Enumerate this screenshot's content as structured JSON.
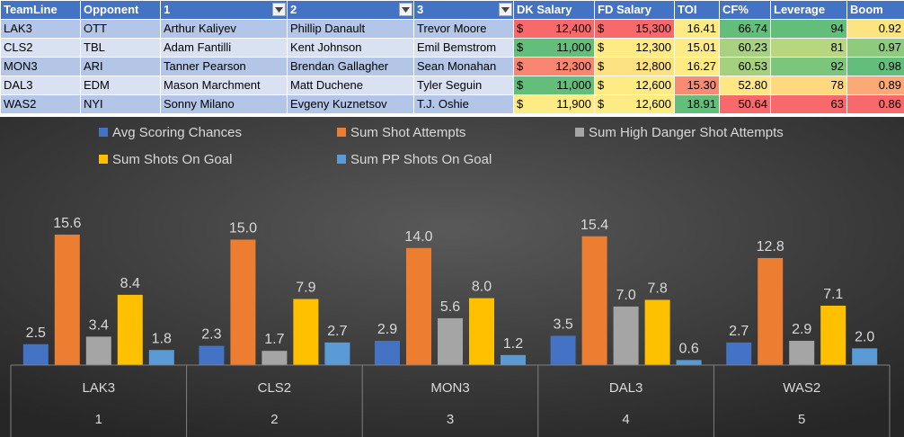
{
  "table": {
    "columns": [
      "TeamLine",
      "Opponent",
      "1",
      "2",
      "3",
      "DK Salary",
      "FD Salary",
      "TOI",
      "CF%",
      "Leverage",
      "Boom"
    ],
    "filter_columns": [
      2,
      3,
      4
    ],
    "rows": [
      {
        "teamline": "LAK3",
        "opponent": "OTT",
        "p1": "Arthur Kaliyev",
        "p2": "Phillip Danault",
        "p3": "Trevor Moore",
        "dk": "12,400",
        "fd": "15,300",
        "toi": "16.41",
        "cf": "66.74",
        "leverage": "94",
        "boom": "0.92"
      },
      {
        "teamline": "CLS2",
        "opponent": "TBL",
        "p1": "Adam Fantilli",
        "p2": "Kent Johnson",
        "p3": "Emil Bemstrom",
        "dk": "11,000",
        "fd": "12,300",
        "toi": "15.01",
        "cf": "60.23",
        "leverage": "81",
        "boom": "0.97"
      },
      {
        "teamline": "MON3",
        "opponent": "ARI",
        "p1": "Tanner Pearson",
        "p2": "Brendan Gallagher",
        "p3": "Sean Monahan",
        "dk": "12,300",
        "fd": "12,800",
        "toi": "16.27",
        "cf": "60.53",
        "leverage": "92",
        "boom": "0.98"
      },
      {
        "teamline": "DAL3",
        "opponent": "EDM",
        "p1": "Mason Marchment",
        "p2": "Matt Duchene",
        "p3": "Tyler Seguin",
        "dk": "11,000",
        "fd": "12,600",
        "toi": "15.30",
        "cf": "52.80",
        "leverage": "78",
        "boom": "0.89"
      },
      {
        "teamline": "WAS2",
        "opponent": "NYI",
        "p1": "Sonny Milano",
        "p2": "Evgeny Kuznetsov",
        "p3": "T.J. Oshie",
        "dk": "11,900",
        "fd": "12,600",
        "toi": "18.91",
        "cf": "50.64",
        "leverage": "63",
        "boom": "0.86"
      }
    ],
    "currency_symbol": "$",
    "cell_colors": {
      "dk": [
        "#f8696b",
        "#63be7b",
        "#f98670",
        "#63be7b",
        "#ffeb84"
      ],
      "fd": [
        "#f8696b",
        "#ffeb84",
        "#fee182",
        "#ffeb84",
        "#ffeb84"
      ],
      "toi": [
        "#ffeb84",
        "#ffeb84",
        "#ffeb84",
        "#f98b72",
        "#63be7b"
      ],
      "cf": [
        "#63be7b",
        "#a8d27f",
        "#a5d17e",
        "#ffe883",
        "#f8696b"
      ],
      "leverage": [
        "#63be7b",
        "#b8d680",
        "#7bc57c",
        "#ffd880",
        "#f8696b"
      ],
      "boom": [
        "#fde483",
        "#8fcb7d",
        "#63be7b",
        "#fbaa77",
        "#f8696b"
      ]
    },
    "header_color": "#4472c4",
    "band_colors": [
      "#b4c6e7",
      "#d9e1f2"
    ],
    "dropdown_icon": "filter-dropdown-icon"
  },
  "chart_data": {
    "type": "bar",
    "title": "",
    "categories": [
      {
        "label": "LAK3",
        "sub": "1"
      },
      {
        "label": "CLS2",
        "sub": "2"
      },
      {
        "label": "MON3",
        "sub": "3"
      },
      {
        "label": "DAL3",
        "sub": "4"
      },
      {
        "label": "WAS2",
        "sub": "5"
      }
    ],
    "series": [
      {
        "name": "Avg Scoring Chances",
        "color": "#4472c4",
        "values": [
          2.5,
          2.3,
          2.9,
          3.5,
          2.7
        ]
      },
      {
        "name": "Sum Shot Attempts",
        "color": "#ed7d31",
        "values": [
          15.6,
          15.0,
          14.0,
          15.4,
          12.8
        ]
      },
      {
        "name": "Sum High Danger Shot Attempts",
        "color": "#a5a5a5",
        "values": [
          3.4,
          1.7,
          5.6,
          7.0,
          2.9
        ]
      },
      {
        "name": "Sum Shots On Goal",
        "color": "#ffc000",
        "values": [
          8.4,
          7.9,
          8.0,
          7.8,
          7.1
        ]
      },
      {
        "name": "Sum PP Shots On Goal",
        "color": "#5b9bd5",
        "values": [
          1.8,
          2.7,
          1.2,
          0.6,
          2.0
        ]
      }
    ],
    "ylim": [
      0,
      20
    ],
    "legend_position": "top",
    "grid": false,
    "data_labels": true,
    "background": "dark-gradient"
  }
}
